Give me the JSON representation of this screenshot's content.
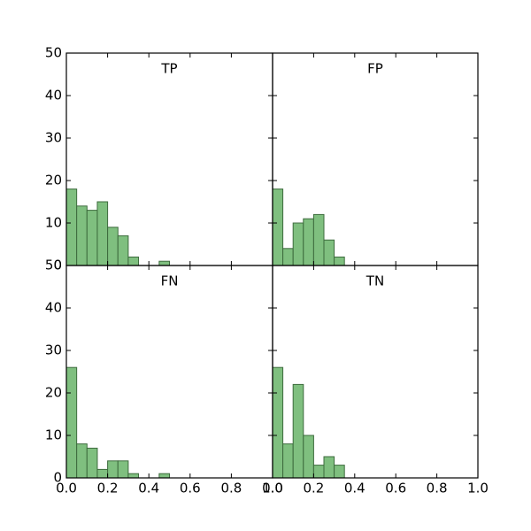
{
  "chart_data": [
    {
      "type": "histogram",
      "title": "TP",
      "bins": [
        0,
        0.05,
        0.1,
        0.15,
        0.2,
        0.25,
        0.3,
        0.35,
        0.4,
        0.45,
        0.5
      ],
      "counts": [
        18,
        14,
        13,
        15,
        9,
        7,
        2,
        0,
        0,
        1
      ],
      "color": "#7fbf7f",
      "xlim": [
        0,
        1
      ],
      "ylim": [
        0,
        50
      ],
      "xticks": [
        {
          "value": 0,
          "label": "0.0"
        },
        0.2,
        0.4,
        0.6,
        0.8,
        {
          "value": 1,
          "label": "1.0"
        }
      ],
      "yticks": [
        0,
        10,
        20,
        30,
        40,
        50
      ]
    },
    {
      "type": "histogram",
      "title": "FP",
      "bins": [
        0,
        0.05,
        0.1,
        0.15,
        0.2,
        0.25,
        0.3,
        0.35
      ],
      "counts": [
        18,
        4,
        10,
        11,
        12,
        6,
        2
      ],
      "color": "#7fbf7f",
      "xlim": [
        0,
        1
      ],
      "ylim": [
        0,
        50
      ],
      "xticks": [
        {
          "value": 0,
          "label": "0.0"
        },
        0.2,
        0.4,
        0.6,
        0.8,
        {
          "value": 1,
          "label": "1.0"
        }
      ],
      "yticks": [
        0,
        10,
        20,
        30,
        40,
        50
      ]
    },
    {
      "type": "histogram",
      "title": "FN",
      "bins": [
        0,
        0.05,
        0.1,
        0.15,
        0.2,
        0.25,
        0.3,
        0.35,
        0.4,
        0.45,
        0.5
      ],
      "counts": [
        26,
        8,
        7,
        2,
        4,
        4,
        1,
        0,
        0,
        1
      ],
      "color": "#7fbf7f",
      "xlim": [
        0,
        1
      ],
      "ylim": [
        0,
        50
      ],
      "xticks": [
        {
          "value": 0,
          "label": "0.0"
        },
        0.2,
        0.4,
        0.6,
        0.8,
        {
          "value": 1,
          "label": "1.0"
        }
      ],
      "yticks": [
        0,
        10,
        20,
        30,
        40,
        50
      ]
    },
    {
      "type": "histogram",
      "title": "TN",
      "bins": [
        0,
        0.05,
        0.1,
        0.15,
        0.2,
        0.25,
        0.3,
        0.35
      ],
      "counts": [
        26,
        8,
        22,
        10,
        3,
        5,
        3
      ],
      "color": "#7fbf7f",
      "xlim": [
        0,
        1
      ],
      "ylim": [
        0,
        50
      ],
      "xticks": [
        {
          "value": 0,
          "label": "0.0"
        },
        0.2,
        0.4,
        0.6,
        0.8,
        {
          "value": 1,
          "label": "1.0"
        }
      ],
      "yticks": [
        0,
        10,
        20,
        30,
        40,
        50
      ]
    }
  ]
}
